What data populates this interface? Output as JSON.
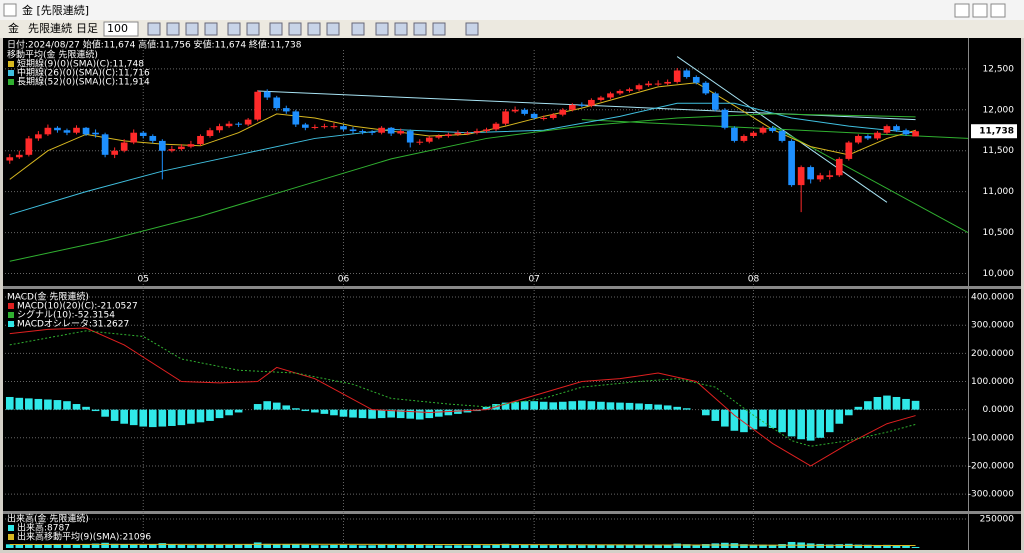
{
  "window": {
    "title": "金 [先限連続]",
    "toolbar": {
      "symbol": "金",
      "contract": "先限連続",
      "period": "日足",
      "count": "100"
    }
  },
  "chart_data": [
    {
      "type": "candlestick",
      "info": "日付:2024/08/27 始値:11,674 高値:11,756 安値:11,674 終値:11,738",
      "legend_title": "移動平均(金 先限連続)",
      "xlim": [
        -0.5,
        100.5
      ],
      "xticks": [
        {
          "value": 14,
          "label": "05"
        },
        {
          "value": 35,
          "label": "06"
        },
        {
          "value": 55,
          "label": "07"
        },
        {
          "value": 78,
          "label": "08"
        }
      ],
      "ylim": [
        9860,
        12730
      ],
      "yticks": [
        {
          "value": 10000,
          "label": "10,000"
        },
        {
          "value": 10500,
          "label": "10,500"
        },
        {
          "value": 11000,
          "label": "11,000"
        },
        {
          "value": 11500,
          "label": "11,500"
        },
        {
          "value": 12000,
          "label": "12,000"
        },
        {
          "value": 12500,
          "label": "12,500"
        }
      ],
      "grid": true,
      "up_color": "#ff2a2a",
      "down_color": "#1e90ff",
      "last_label": {
        "value": 11738,
        "label": "11,738"
      },
      "candles": [
        [
          11380,
          11460,
          11340,
          11420
        ],
        [
          11420,
          11500,
          11400,
          11450
        ],
        [
          11450,
          11680,
          11430,
          11650
        ],
        [
          11650,
          11740,
          11620,
          11700
        ],
        [
          11700,
          11820,
          11680,
          11780
        ],
        [
          11780,
          11800,
          11720,
          11750
        ],
        [
          11750,
          11770,
          11690,
          11720
        ],
        [
          11720,
          11810,
          11700,
          11780
        ],
        [
          11780,
          11790,
          11680,
          11700
        ],
        [
          11720,
          11760,
          11660,
          11700
        ],
        [
          11700,
          11720,
          11420,
          11450
        ],
        [
          11450,
          11540,
          11410,
          11500
        ],
        [
          11500,
          11640,
          11480,
          11600
        ],
        [
          11600,
          11760,
          11580,
          11720
        ],
        [
          11720,
          11740,
          11650,
          11680
        ],
        [
          11680,
          11700,
          11590,
          11620
        ],
        [
          11620,
          11640,
          11150,
          11500
        ],
        [
          11500,
          11560,
          11480,
          11520
        ],
        [
          11520,
          11580,
          11500,
          11550
        ],
        [
          11550,
          11620,
          11530,
          11580
        ],
        [
          11580,
          11700,
          11560,
          11680
        ],
        [
          11680,
          11780,
          11660,
          11750
        ],
        [
          11750,
          11830,
          11720,
          11800
        ],
        [
          11800,
          11860,
          11780,
          11830
        ],
        [
          11830,
          11850,
          11790,
          11820
        ],
        [
          11820,
          11900,
          11800,
          11880
        ],
        [
          11880,
          12240,
          11860,
          12220
        ],
        [
          12220,
          12250,
          12120,
          12150
        ],
        [
          12150,
          12170,
          11990,
          12020
        ],
        [
          12020,
          12050,
          11950,
          11980
        ],
        [
          11980,
          12000,
          11790,
          11820
        ],
        [
          11820,
          11840,
          11750,
          11780
        ],
        [
          11780,
          11820,
          11760,
          11790
        ],
        [
          11790,
          11830,
          11770,
          11800
        ],
        [
          11800,
          11840,
          11770,
          11800
        ],
        [
          11800,
          11820,
          11740,
          11760
        ],
        [
          11760,
          11790,
          11710,
          11740
        ],
        [
          11740,
          11760,
          11700,
          11730
        ],
        [
          11730,
          11750,
          11690,
          11720
        ],
        [
          11720,
          11800,
          11700,
          11780
        ],
        [
          11780,
          11790,
          11680,
          11710
        ],
        [
          11710,
          11770,
          11690,
          11740
        ],
        [
          11740,
          11760,
          11540,
          11600
        ],
        [
          11600,
          11640,
          11570,
          11610
        ],
        [
          11610,
          11680,
          11590,
          11660
        ],
        [
          11660,
          11700,
          11640,
          11680
        ],
        [
          11680,
          11720,
          11660,
          11700
        ],
        [
          11700,
          11750,
          11680,
          11720
        ],
        [
          11720,
          11740,
          11690,
          11720
        ],
        [
          11720,
          11770,
          11700,
          11740
        ],
        [
          11740,
          11780,
          11720,
          11760
        ],
        [
          11760,
          11850,
          11740,
          11830
        ],
        [
          11830,
          12010,
          11810,
          11980
        ],
        [
          11980,
          12040,
          11960,
          12000
        ],
        [
          12000,
          12020,
          11930,
          11950
        ],
        [
          11950,
          11970,
          11880,
          11900
        ],
        [
          11900,
          11930,
          11870,
          11900
        ],
        [
          11900,
          11960,
          11880,
          11940
        ],
        [
          11940,
          12020,
          11920,
          12000
        ],
        [
          12000,
          12080,
          11980,
          12060
        ],
        [
          12060,
          12090,
          12030,
          12050
        ],
        [
          12050,
          12140,
          12030,
          12120
        ],
        [
          12120,
          12170,
          12100,
          12150
        ],
        [
          12150,
          12220,
          12130,
          12200
        ],
        [
          12200,
          12250,
          12180,
          12230
        ],
        [
          12230,
          12270,
          12210,
          12250
        ],
        [
          12250,
          12320,
          12230,
          12300
        ],
        [
          12300,
          12350,
          12280,
          12320
        ],
        [
          12320,
          12360,
          12290,
          12320
        ],
        [
          12320,
          12370,
          12300,
          12340
        ],
        [
          12340,
          12510,
          12320,
          12480
        ],
        [
          12480,
          12500,
          12380,
          12400
        ],
        [
          12400,
          12420,
          12310,
          12330
        ],
        [
          12330,
          12350,
          12180,
          12200
        ],
        [
          12200,
          12220,
          11980,
          12000
        ],
        [
          12000,
          12020,
          11760,
          11780
        ],
        [
          11780,
          11800,
          11600,
          11620
        ],
        [
          11620,
          11700,
          11600,
          11680
        ],
        [
          11680,
          11740,
          11660,
          11720
        ],
        [
          11720,
          11800,
          11700,
          11780
        ],
        [
          11780,
          11800,
          11720,
          11740
        ],
        [
          11740,
          11760,
          11600,
          11620
        ],
        [
          11620,
          11640,
          11060,
          11080
        ],
        [
          11080,
          11320,
          10750,
          11300
        ],
        [
          11300,
          11320,
          11100,
          11150
        ],
        [
          11150,
          11230,
          11120,
          11200
        ],
        [
          11180,
          11260,
          11150,
          11200
        ],
        [
          11200,
          11420,
          11180,
          11400
        ],
        [
          11400,
          11620,
          11380,
          11600
        ],
        [
          11600,
          11700,
          11580,
          11680
        ],
        [
          11680,
          11700,
          11630,
          11650
        ],
        [
          11650,
          11740,
          11630,
          11720
        ],
        [
          11720,
          11820,
          11700,
          11800
        ],
        [
          11800,
          11820,
          11730,
          11750
        ],
        [
          11750,
          11770,
          11680,
          11700
        ],
        [
          11674,
          11756,
          11674,
          11738
        ]
      ],
      "series": [
        {
          "name": "短期線(9)(0)(SMA)(C):11,748",
          "color": "#d8b820",
          "x": [
            0,
            4,
            8,
            12,
            16,
            20,
            24,
            28,
            32,
            36,
            40,
            44,
            48,
            52,
            56,
            60,
            64,
            68,
            72,
            76,
            80,
            84,
            88,
            92,
            95
          ],
          "values": [
            11150,
            11500,
            11700,
            11620,
            11580,
            11560,
            11720,
            11950,
            11900,
            11800,
            11740,
            11680,
            11700,
            11800,
            11920,
            12020,
            12150,
            12280,
            12330,
            12050,
            11760,
            11550,
            11450,
            11650,
            11748
          ]
        },
        {
          "name": "中期線(26)(0)(SMA)(C):11,716",
          "color": "#40c0e0",
          "x": [
            0,
            8,
            16,
            24,
            32,
            40,
            48,
            56,
            64,
            70,
            76,
            82,
            88,
            95
          ],
          "values": [
            10720,
            11000,
            11250,
            11450,
            11650,
            11760,
            11720,
            11750,
            11920,
            12080,
            12080,
            11900,
            11800,
            11716
          ]
        },
        {
          "name": "長期線(52)(0)(SMA)(C):11,914",
          "color": "#30b030",
          "x": [
            0,
            10,
            20,
            30,
            40,
            50,
            60,
            70,
            80,
            95
          ],
          "values": [
            10150,
            10400,
            10700,
            11050,
            11400,
            11650,
            11800,
            11900,
            11950,
            11914
          ]
        }
      ],
      "trendlines": [
        {
          "color": "#a8e4f4",
          "x": [
            26,
            95
          ],
          "values": [
            12230,
            11880
          ]
        },
        {
          "color": "#a8e4f4",
          "x": [
            70,
            92
          ],
          "values": [
            12650,
            10870
          ]
        },
        {
          "color": "#30b030",
          "x": [
            80,
            100.5
          ],
          "values": [
            11800,
            10500
          ]
        },
        {
          "color": "#30b030",
          "x": [
            60,
            100.5
          ],
          "values": [
            11880,
            11650
          ]
        }
      ]
    },
    {
      "type": "combo",
      "legend_title": "MACD(金 先限連続)",
      "xlim": [
        -0.5,
        100.5
      ],
      "ylim": [
        -360,
        425
      ],
      "yticks": [
        {
          "value": -300,
          "label": "-300.0000"
        },
        {
          "value": -200,
          "label": "-200.0000"
        },
        {
          "value": -100,
          "label": "-100.0000"
        },
        {
          "value": 0,
          "label": "0.0000"
        },
        {
          "value": 100,
          "label": "100.0000"
        },
        {
          "value": 200,
          "label": "200.0000"
        },
        {
          "value": 300,
          "label": "300.0000"
        },
        {
          "value": 400,
          "label": "400.0000"
        }
      ],
      "grid": true,
      "series": [
        {
          "name": "MACD(10)(20)(C):-21.0527",
          "color": "#e02020",
          "x": [
            0,
            4,
            8,
            12,
            18,
            22,
            26,
            28,
            32,
            38,
            44,
            50,
            56,
            60,
            64,
            68,
            72,
            76,
            80,
            84,
            88,
            92,
            95
          ],
          "values": [
            270,
            285,
            290,
            230,
            100,
            95,
            100,
            150,
            110,
            0,
            -10,
            0,
            60,
            100,
            110,
            130,
            100,
            -20,
            -120,
            -200,
            -120,
            -50,
            -21.0527
          ]
        },
        {
          "name": "シグナル(10):-52.3154",
          "color": "#30b030",
          "dashed": true,
          "x": [
            0,
            8,
            14,
            18,
            24,
            30,
            36,
            40,
            46,
            50,
            56,
            60,
            66,
            70,
            74,
            78,
            82,
            84,
            88,
            92,
            95
          ],
          "values": [
            230,
            280,
            260,
            180,
            140,
            130,
            90,
            40,
            20,
            10,
            40,
            80,
            100,
            110,
            80,
            -20,
            -110,
            -130,
            -110,
            -80,
            -52.3154
          ]
        },
        {
          "name": "MACDオシレータ:31.2627",
          "color": "#30e8e8",
          "kind": "bar",
          "values": [
            45,
            42,
            40,
            38,
            36,
            34,
            30,
            20,
            10,
            -5,
            -25,
            -40,
            -50,
            -55,
            -60,
            -62,
            -60,
            -58,
            -55,
            -50,
            -45,
            -40,
            -30,
            -20,
            -10,
            0,
            20,
            30,
            25,
            15,
            5,
            -5,
            -10,
            -15,
            -20,
            -25,
            -28,
            -30,
            -32,
            -30,
            -28,
            -30,
            -32,
            -35,
            -30,
            -25,
            -20,
            -15,
            -10,
            -5,
            10,
            20,
            25,
            28,
            30,
            30,
            28,
            26,
            28,
            30,
            32,
            30,
            28,
            26,
            25,
            24,
            22,
            20,
            18,
            15,
            10,
            5,
            0,
            -20,
            -40,
            -60,
            -75,
            -80,
            -70,
            -60,
            -65,
            -80,
            -95,
            -105,
            -110,
            -100,
            -80,
            -50,
            -20,
            10,
            30,
            45,
            50,
            45,
            38,
            31.2627
          ]
        }
      ]
    },
    {
      "type": "combo",
      "legend_title": "出来高(金 先限連続)",
      "xlim": [
        -0.5,
        100.5
      ],
      "ylim": [
        0,
        293000
      ],
      "yticks": [
        250000
      ],
      "grid": true,
      "series": [
        {
          "name": "出来高:8787",
          "color": "#30e8e8",
          "kind": "bar",
          "values": [
            32000,
            28000,
            35000,
            30000,
            27000,
            31000,
            29000,
            26000,
            33000,
            38000,
            45000,
            36000,
            30000,
            28000,
            27000,
            30000,
            42000,
            31000,
            26000,
            25000,
            28000,
            30000,
            27000,
            26000,
            29000,
            31000,
            48000,
            36000,
            33000,
            30000,
            34000,
            28000,
            25000,
            24000,
            26000,
            27000,
            25000,
            23000,
            24000,
            28000,
            26000,
            25000,
            32000,
            27000,
            24000,
            23000,
            22000,
            24000,
            23000,
            25000,
            24000,
            28000,
            36000,
            30000,
            27000,
            26000,
            25000,
            26000,
            28000,
            27000,
            25000,
            28000,
            27000,
            29000,
            28000,
            26000,
            30000,
            29000,
            27000,
            26000,
            38000,
            33000,
            30000,
            34000,
            40000,
            45000,
            42000,
            33000,
            30000,
            29000,
            27000,
            34000,
            52000,
            48000,
            40000,
            35000,
            31000,
            33000,
            36000,
            30000,
            28000,
            26000,
            27000,
            25000,
            22000,
            8787
          ]
        },
        {
          "name": "出来高移動平均(9)(SMA):21096",
          "color": "#d8b820",
          "x": [
            0,
            30,
            60,
            95
          ],
          "values": [
            30000,
            32000,
            28000,
            21096
          ]
        }
      ]
    }
  ]
}
